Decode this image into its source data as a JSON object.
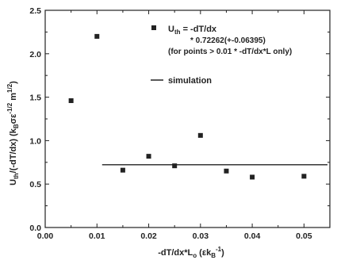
{
  "chart_data": {
    "type": "scatter",
    "xlabel": "-dT/dx*L",
    "xlabel_sub": "o",
    "xlabel_units_open": "  (εk",
    "xlabel_units_sub": "B",
    "xlabel_units_sup": "-1",
    "xlabel_units_close": ")",
    "ylabel_parts": {
      "main": "U",
      "sub": "th",
      "after": "/(-dT/dx)  (k",
      "sub2": "B",
      "mid": "σε",
      "sup1": "-1/2",
      "m": " m",
      "sup2": "1/2",
      "close": ")"
    },
    "xlim": [
      0.0,
      0.055
    ],
    "ylim": [
      0.0,
      2.5
    ],
    "xticks": [
      "0.00",
      "0.01",
      "0.02",
      "0.03",
      "0.04",
      "0.05"
    ],
    "yticks": [
      "0.0",
      "0.5",
      "1.0",
      "1.5",
      "2.0",
      "2.5"
    ],
    "series": [
      {
        "x": [
          0.005,
          0.01,
          0.015,
          0.02,
          0.025,
          0.03,
          0.035,
          0.04,
          0.05
        ],
        "y": [
          1.46,
          2.2,
          0.66,
          0.82,
          0.71,
          1.06,
          0.65,
          0.58,
          0.59
        ]
      },
      {
        "name": "simulation",
        "x": [
          0.011,
          0.055
        ],
        "y": [
          0.72262,
          0.72262
        ]
      }
    ],
    "legend": {
      "marker_label_main": "U",
      "marker_label_sub": "th",
      "marker_label_rest": " = -dT/dx",
      "line2": "* 0.72262(+-0.06395)",
      "line3": "(for points > 0.01 * -dT/dx*L only)",
      "line_label": "simulation"
    }
  }
}
